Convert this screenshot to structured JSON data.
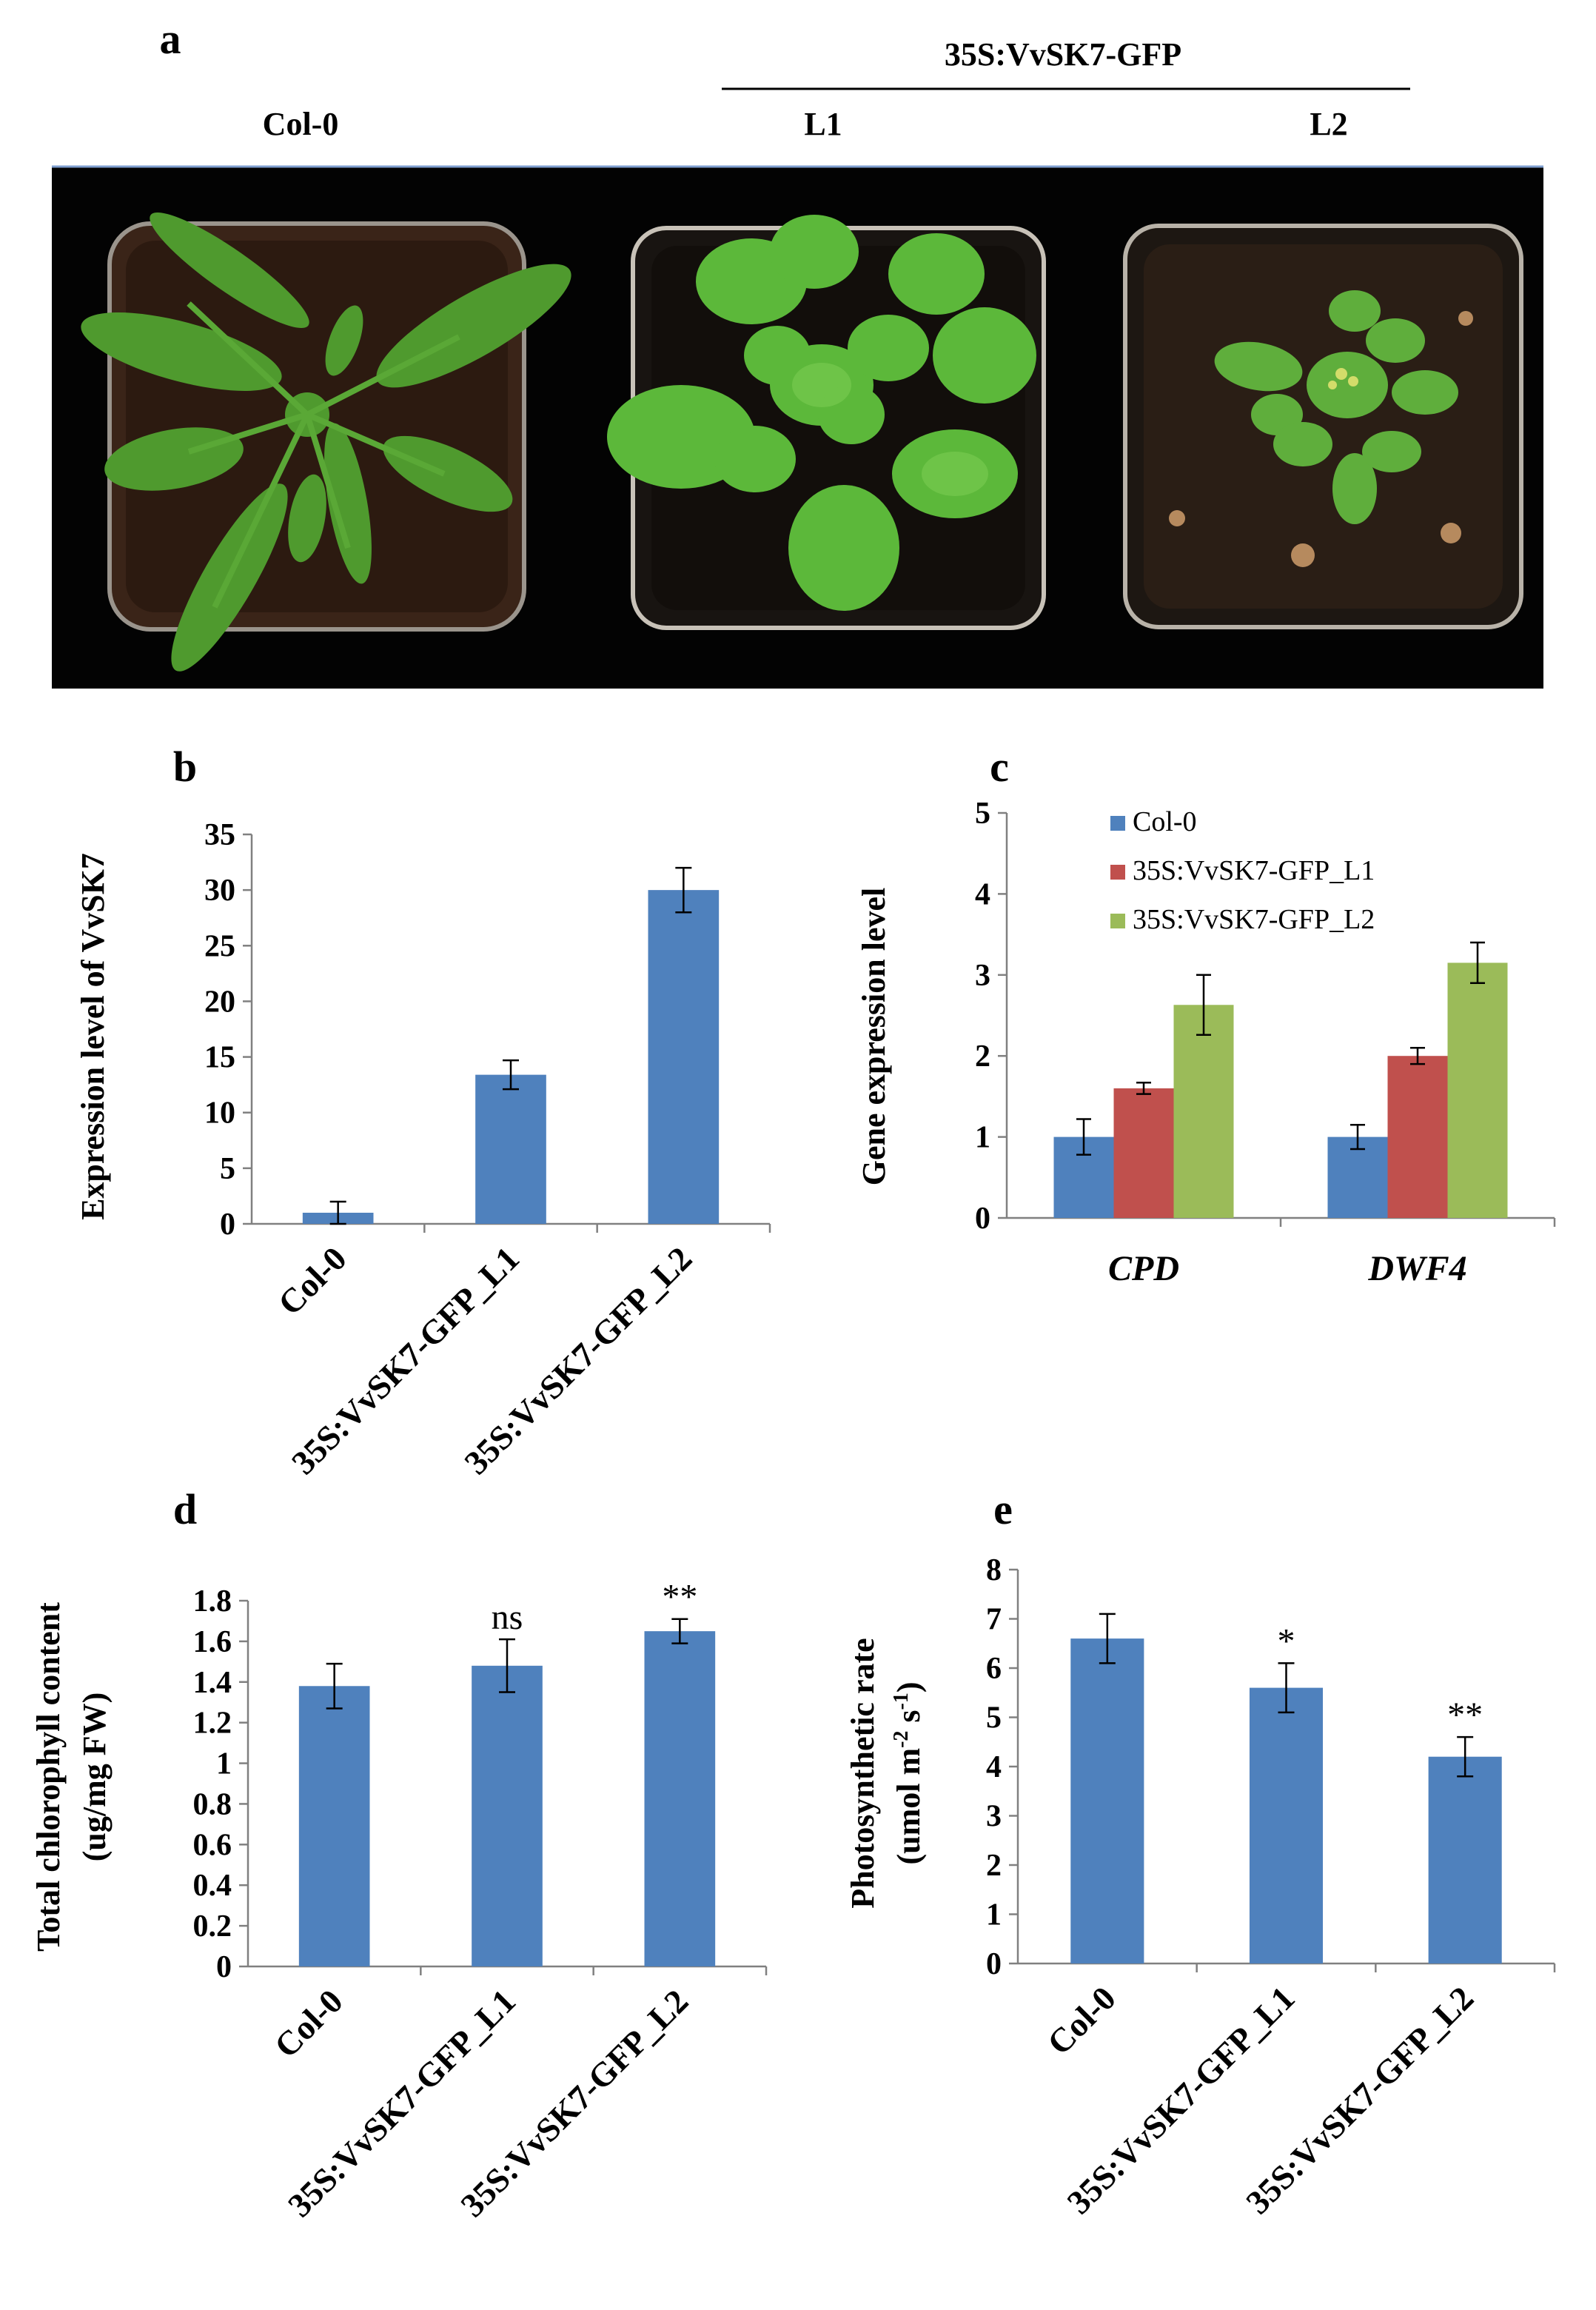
{
  "panel_a": {
    "label": "a",
    "group_label": "35S:VvSK7-GFP",
    "plants": [
      {
        "name": "Col-0"
      },
      {
        "name": "L1"
      },
      {
        "name": "L2"
      }
    ]
  },
  "chart_data": [
    {
      "panel": "b",
      "type": "bar",
      "ylabel": "Expression level of VvSK7",
      "ylim": [
        0,
        35
      ],
      "yticks": [
        0,
        5,
        10,
        15,
        20,
        25,
        30,
        35
      ],
      "categories": [
        "Col-0",
        "35S:VvSK7-GFP_L1",
        "35S:VvSK7-GFP_L2"
      ],
      "values": [
        1.0,
        13.4,
        30.0
      ],
      "errors": [
        1.0,
        1.3,
        2.0
      ],
      "color": "#4f81bd"
    },
    {
      "panel": "c",
      "type": "bar",
      "ylabel": "Gene expression level",
      "ylim": [
        0,
        5
      ],
      "yticks": [
        0,
        1,
        2,
        3,
        4,
        5
      ],
      "categories": [
        "CPD",
        "DWF4"
      ],
      "series": [
        {
          "name": "Col-0",
          "color": "#4f81bd",
          "values": [
            1.0,
            1.0
          ],
          "errors": [
            0.22,
            0.15
          ]
        },
        {
          "name": "35S:VvSK7-GFP_L1",
          "color": "#c0504d",
          "values": [
            1.6,
            2.0
          ],
          "errors": [
            0.07,
            0.1
          ]
        },
        {
          "name": "35S:VvSK7-GFP_L2",
          "color": "#9bbb59",
          "values": [
            2.63,
            3.15
          ],
          "errors": [
            0.37,
            0.25
          ]
        }
      ],
      "legend": "top-center"
    },
    {
      "panel": "d",
      "type": "bar",
      "ylabel": [
        "Total chlorophyll content",
        "(ug/mg FW)"
      ],
      "ylim": [
        0,
        1.8
      ],
      "yticks": [
        "0",
        "0.2",
        "0.4",
        "0.6",
        "0.8",
        "1",
        "1.2",
        "1.4",
        "1.6",
        "1.8"
      ],
      "categories": [
        "Col-0",
        "35S:VvSK7-GFP_L1",
        "35S:VvSK7-GFP_L2"
      ],
      "values": [
        1.38,
        1.48,
        1.65
      ],
      "errors": [
        0.11,
        0.13,
        0.06
      ],
      "annotations": [
        "",
        "ns",
        "**"
      ],
      "color": "#4f81bd"
    },
    {
      "panel": "e",
      "type": "bar",
      "ylabel": [
        "Photosynthetic rate",
        "(umol m",
        "-2",
        " s",
        "-1",
        ")"
      ],
      "ylim": [
        0,
        8
      ],
      "yticks": [
        0,
        1,
        2,
        3,
        4,
        5,
        6,
        7,
        8
      ],
      "categories": [
        "Col-0",
        "35S:VvSK7-GFP_L1",
        "35S:VvSK7-GFP_L2"
      ],
      "values": [
        6.6,
        5.6,
        4.2
      ],
      "errors": [
        0.5,
        0.5,
        0.4
      ],
      "annotations": [
        "",
        "*",
        "**"
      ],
      "color": "#4f81bd"
    }
  ]
}
